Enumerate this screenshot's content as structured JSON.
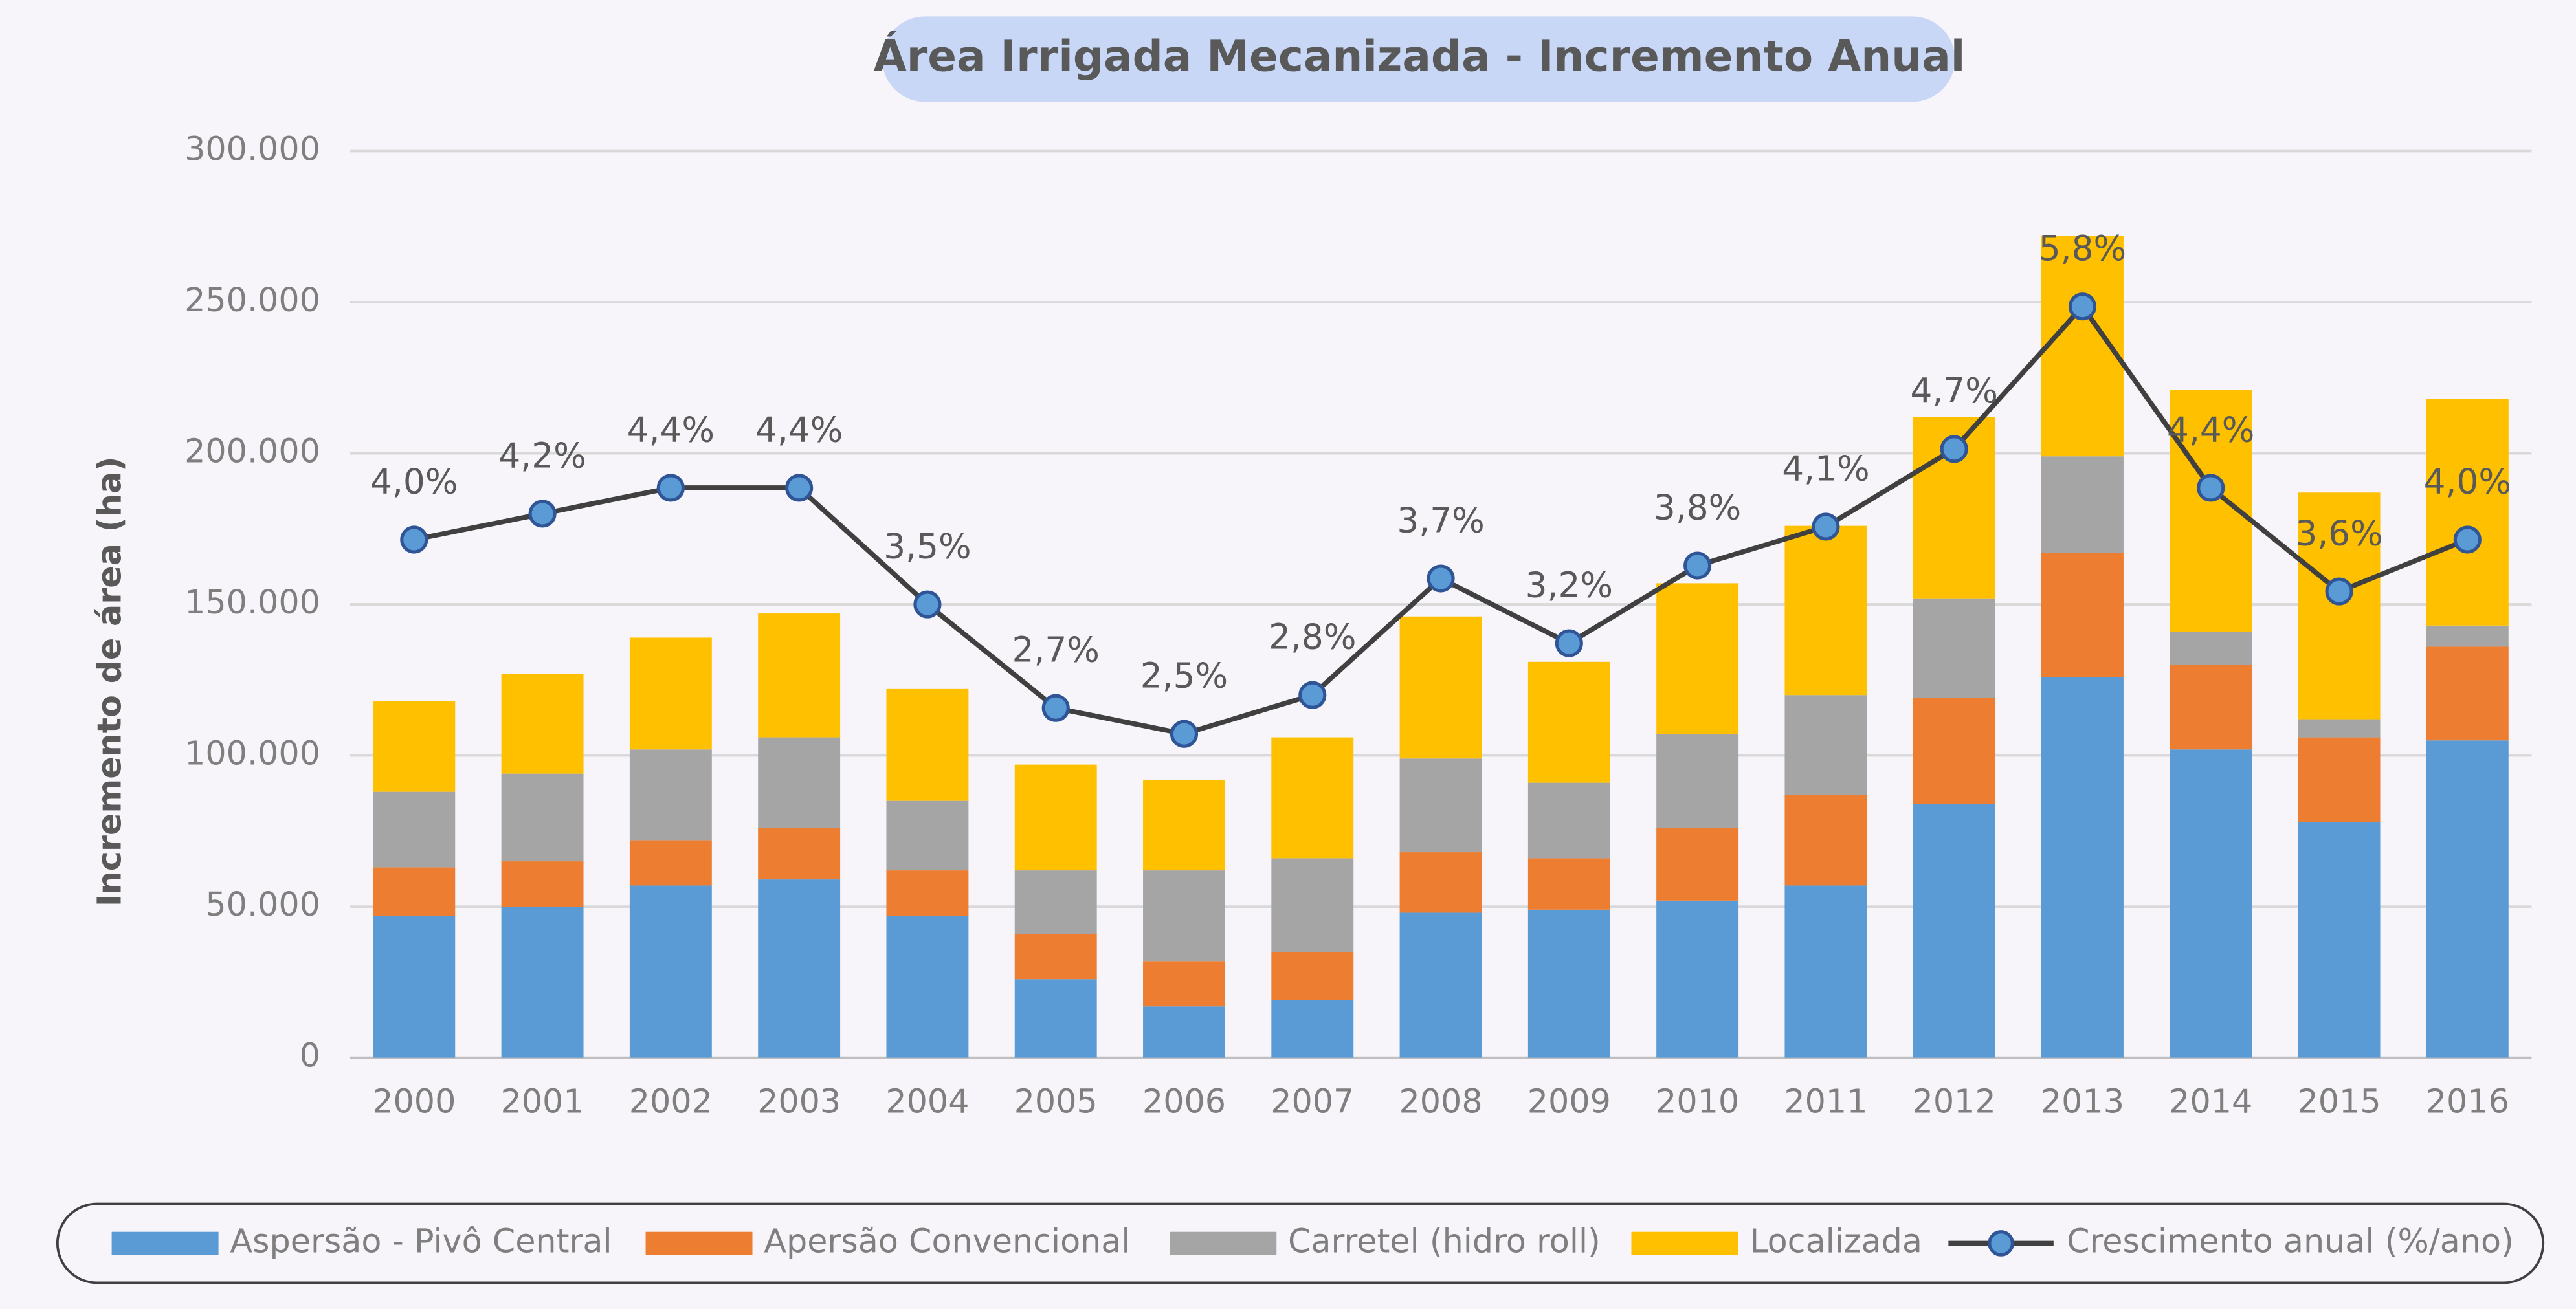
{
  "chart_data": {
    "type": "bar",
    "stacked": true,
    "title": "Área Irrigada Mecanizada - Incremento Anual",
    "y_label": "Incremento de área (ha)",
    "categories": [
      "2000",
      "2001",
      "2002",
      "2003",
      "2004",
      "2005",
      "2006",
      "2007",
      "2008",
      "2009",
      "2010",
      "2011",
      "2012",
      "2013",
      "2014",
      "2015",
      "2016"
    ],
    "series": [
      {
        "name": "Aspersão - Pivô Central",
        "color": "#5b9bd5",
        "values": [
          47000,
          50000,
          57000,
          59000,
          47000,
          26000,
          17000,
          19000,
          48000,
          49000,
          52000,
          57000,
          84000,
          126000,
          102000,
          78000,
          105000
        ]
      },
      {
        "name": "Apersão Convencional",
        "color": "#ed7d31",
        "values": [
          16000,
          15000,
          15000,
          17000,
          15000,
          15000,
          15000,
          16000,
          20000,
          17000,
          24000,
          30000,
          35000,
          41000,
          28000,
          28000,
          31000
        ]
      },
      {
        "name": "Carretel (hidro roll)",
        "color": "#a5a5a5",
        "values": [
          25000,
          29000,
          30000,
          30000,
          23000,
          21000,
          30000,
          31000,
          31000,
          25000,
          31000,
          33000,
          33000,
          32000,
          11000,
          6000,
          7000
        ]
      },
      {
        "name": "Localizada",
        "color": "#ffc000",
        "values": [
          30000,
          33000,
          37000,
          41000,
          37000,
          35000,
          30000,
          40000,
          47000,
          40000,
          50000,
          56000,
          60000,
          73000,
          80000,
          75000,
          75000
        ]
      },
      {
        "name": "Crescimento anual (%/ano)",
        "type": "line",
        "axis": "y2",
        "color": "#404040",
        "marker_color": "#5b9bd5",
        "values": [
          4.0,
          4.2,
          4.4,
          4.4,
          3.5,
          2.7,
          2.5,
          2.8,
          3.7,
          3.2,
          3.8,
          4.1,
          4.7,
          5.8,
          4.4,
          3.6,
          4.0
        ],
        "value_labels": [
          "4,0%",
          "4,2%",
          "4,4%",
          "4,4%",
          "3,5%",
          "2,7%",
          "2,5%",
          "2,8%",
          "3,7%",
          "3,2%",
          "3,8%",
          "4,1%",
          "4,7%",
          "5,8%",
          "4,4%",
          "3,6%",
          "4,0%"
        ]
      }
    ],
    "ylim": [
      0,
      300000
    ],
    "yticks": [
      0,
      {
        "value": 50000,
        "label": "50.000"
      },
      {
        "value": 100000,
        "label": "100.000"
      },
      {
        "value": 150000,
        "label": "150.000"
      },
      {
        "value": 200000,
        "label": "200.000"
      },
      {
        "value": 250000,
        "label": "250.000"
      },
      {
        "value": 300000,
        "label": "300.000"
      }
    ],
    "y2lim": [
      0,
      7
    ],
    "grid": true,
    "legend": "bottom"
  }
}
